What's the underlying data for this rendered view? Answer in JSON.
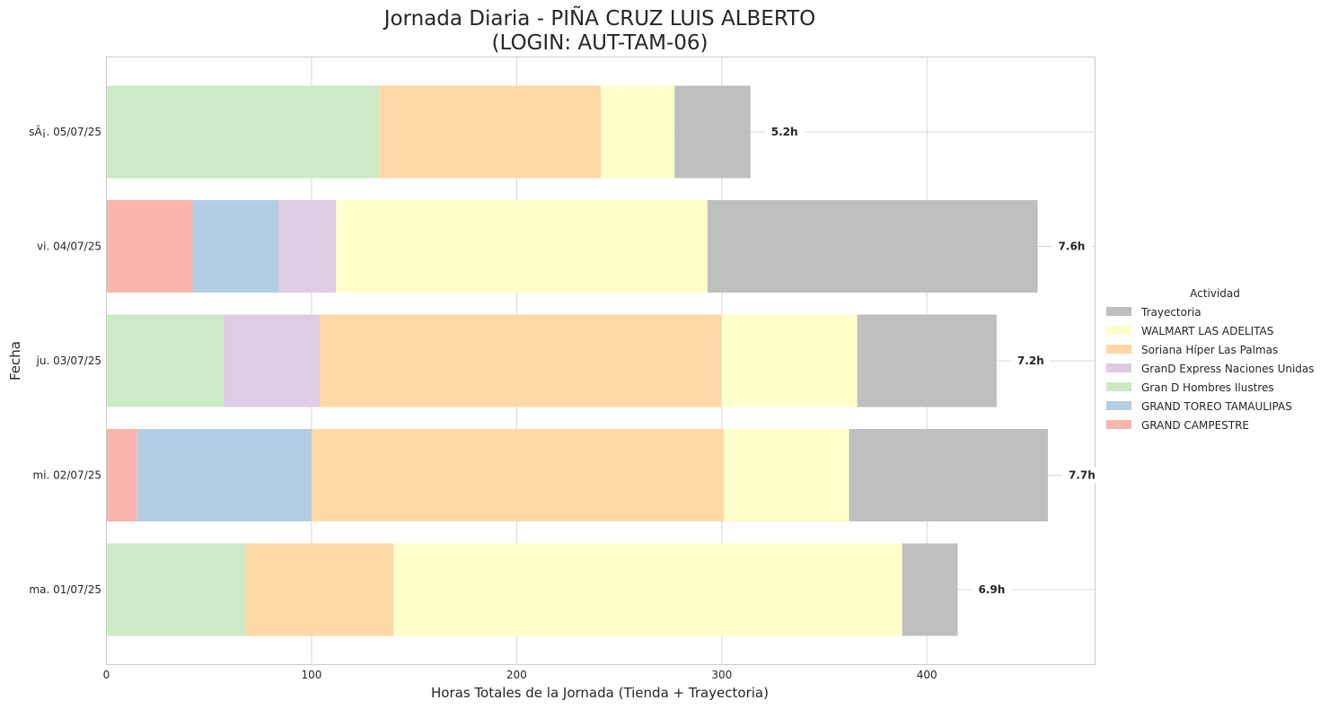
{
  "chart_data": {
    "type": "bar",
    "orientation": "horizontal",
    "stacked": true,
    "title_line1": "Jornada Diaria - PIÑA CRUZ LUIS ALBERTO",
    "title_line2": "(LOGIN: AUT-TAM-06)",
    "xlabel": "Horas Totales de la Jornada (Tienda + Trayectoria)",
    "ylabel": "Fecha",
    "xlim": [
      0,
      482
    ],
    "xticks": [
      0,
      100,
      200,
      300,
      400
    ],
    "grid": true,
    "legend_title": "Actividad",
    "legend_position": "right",
    "categories": [
      "ma. 01/07/25",
      "mi. 02/07/25",
      "ju. 03/07/25",
      "vi. 04/07/25",
      "sÃ¡. 05/07/25"
    ],
    "totals": [
      "6.9h",
      "7.7h",
      "7.2h",
      "7.6h",
      "5.2h"
    ],
    "series": [
      {
        "name": "GRAND CAMPESTRE",
        "color": "#fbb4ae",
        "values": [
          0,
          15,
          0,
          42,
          0
        ]
      },
      {
        "name": "GRAND TOREO TAMAULIPAS",
        "color": "#b3cde3",
        "values": [
          0,
          85,
          0,
          42,
          0
        ]
      },
      {
        "name": "Gran D Hombres Ilustres",
        "color": "#ccebc5",
        "values": [
          68,
          0,
          57,
          0,
          133
        ]
      },
      {
        "name": "GranD Express Naciones Unidas",
        "color": "#decbe4",
        "values": [
          0,
          0,
          47,
          28,
          0
        ]
      },
      {
        "name": "Soriana Híper Las Palmas",
        "color": "#fed9a6",
        "values": [
          72,
          201,
          196,
          0,
          108
        ]
      },
      {
        "name": "WALMART LAS ADELITAS",
        "color": "#ffffcc",
        "values": [
          248,
          61,
          66,
          181,
          36
        ]
      },
      {
        "name": "Trayectoria",
        "color": "#bfbfbf",
        "values": [
          27,
          97,
          68,
          161,
          37
        ]
      }
    ],
    "legend_order": [
      "Trayectoria",
      "WALMART LAS ADELITAS",
      "Soriana Híper Las Palmas",
      "GranD Express Naciones Unidas",
      "Gran D Hombres Ilustres",
      "GRAND TOREO TAMAULIPAS",
      "GRAND CAMPESTRE"
    ]
  }
}
